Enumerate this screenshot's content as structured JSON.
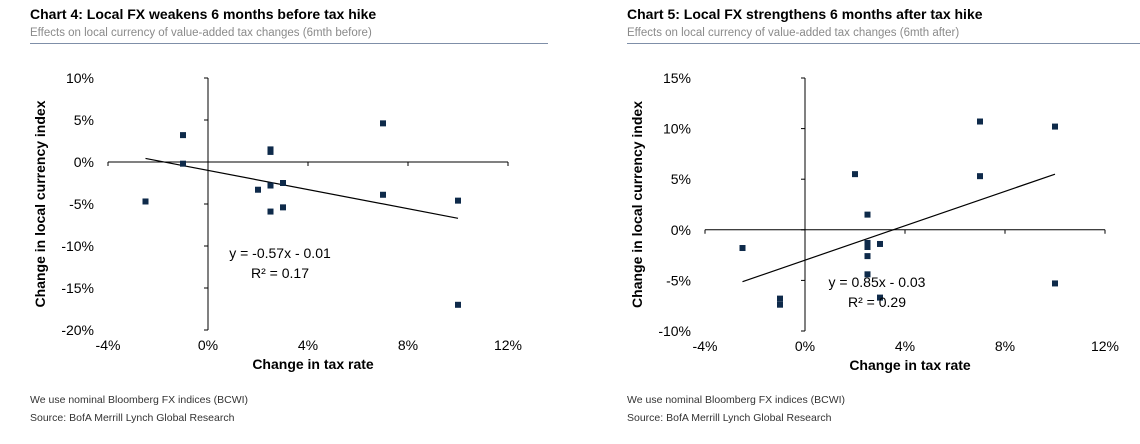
{
  "charts": [
    {
      "title": "Chart 4: Local FX weakens 6 months before tax hike",
      "subtitle": "Effects on local currency of value-added tax changes (6mth before)",
      "footnote": "We use nominal Bloomberg FX indices (BCWI)",
      "source": "Source: BofA Merrill Lynch Global Research"
    },
    {
      "title": "Chart 5: Local FX strengthens 6 months after tax hike",
      "subtitle": "Effects on local currency of value-added tax changes (6mth after)",
      "footnote": "We use nominal Bloomberg FX indices (BCWI)",
      "source": "Source: BofA Merrill Lynch Global Research"
    }
  ],
  "chart_data": [
    {
      "type": "scatter",
      "xlabel": "Change in tax rate",
      "ylabel": "Change in local currency index",
      "xlim": [
        -0.04,
        0.12
      ],
      "ylim": [
        -0.2,
        0.1
      ],
      "xticks": [
        -0.04,
        0.0,
        0.04,
        0.08,
        0.12
      ],
      "xtick_labels": [
        "-4%",
        "0%",
        "4%",
        "8%",
        "12%"
      ],
      "yticks": [
        0.1,
        0.05,
        0.0,
        -0.05,
        -0.1,
        -0.15,
        -0.2
      ],
      "ytick_labels": [
        "10%",
        "5%",
        "0%",
        "-5%",
        "-10%",
        "-15%",
        "-20%"
      ],
      "points": [
        {
          "x": -0.025,
          "y": -0.047
        },
        {
          "x": -0.01,
          "y": 0.032
        },
        {
          "x": -0.01,
          "y": -0.002
        },
        {
          "x": 0.02,
          "y": -0.033
        },
        {
          "x": 0.025,
          "y": 0.015
        },
        {
          "x": 0.025,
          "y": 0.012
        },
        {
          "x": 0.025,
          "y": -0.028
        },
        {
          "x": 0.025,
          "y": -0.059
        },
        {
          "x": 0.03,
          "y": -0.025
        },
        {
          "x": 0.03,
          "y": -0.054
        },
        {
          "x": 0.07,
          "y": 0.046
        },
        {
          "x": 0.07,
          "y": -0.039
        },
        {
          "x": 0.1,
          "y": -0.046
        },
        {
          "x": 0.1,
          "y": -0.17
        }
      ],
      "trendline": {
        "slope": -0.57,
        "intercept": -0.01,
        "x_from": -0.025,
        "x_to": 0.1
      },
      "equation": "y = -0.57x - 0.01",
      "r_squared": "R² = 0.17",
      "grid": false,
      "legend": "none"
    },
    {
      "type": "scatter",
      "xlabel": "Change in tax rate",
      "ylabel": "Change in local currency index",
      "xlim": [
        -0.04,
        0.12
      ],
      "ylim": [
        -0.1,
        0.15
      ],
      "xticks": [
        -0.04,
        0.0,
        0.04,
        0.08,
        0.12
      ],
      "xtick_labels": [
        "-4%",
        "0%",
        "4%",
        "8%",
        "12%"
      ],
      "yticks": [
        0.15,
        0.1,
        0.05,
        0.0,
        -0.05,
        -0.1
      ],
      "ytick_labels": [
        "15%",
        "10%",
        "5%",
        "0%",
        "-5%",
        "-10%"
      ],
      "points": [
        {
          "x": -0.025,
          "y": -0.018
        },
        {
          "x": -0.01,
          "y": -0.068
        },
        {
          "x": -0.01,
          "y": -0.074
        },
        {
          "x": 0.02,
          "y": 0.055
        },
        {
          "x": 0.025,
          "y": 0.015
        },
        {
          "x": 0.025,
          "y": -0.013
        },
        {
          "x": 0.025,
          "y": -0.017
        },
        {
          "x": 0.025,
          "y": -0.026
        },
        {
          "x": 0.025,
          "y": -0.044
        },
        {
          "x": 0.03,
          "y": -0.014
        },
        {
          "x": 0.03,
          "y": -0.067
        },
        {
          "x": 0.07,
          "y": 0.107
        },
        {
          "x": 0.07,
          "y": 0.053
        },
        {
          "x": 0.1,
          "y": 0.102
        },
        {
          "x": 0.1,
          "y": -0.053
        }
      ],
      "trendline": {
        "slope": 0.85,
        "intercept": -0.03,
        "x_from": -0.025,
        "x_to": 0.1
      },
      "equation": "y = 0.85x - 0.03",
      "r_squared": "R² = 0.29",
      "grid": false,
      "legend": "none"
    }
  ]
}
